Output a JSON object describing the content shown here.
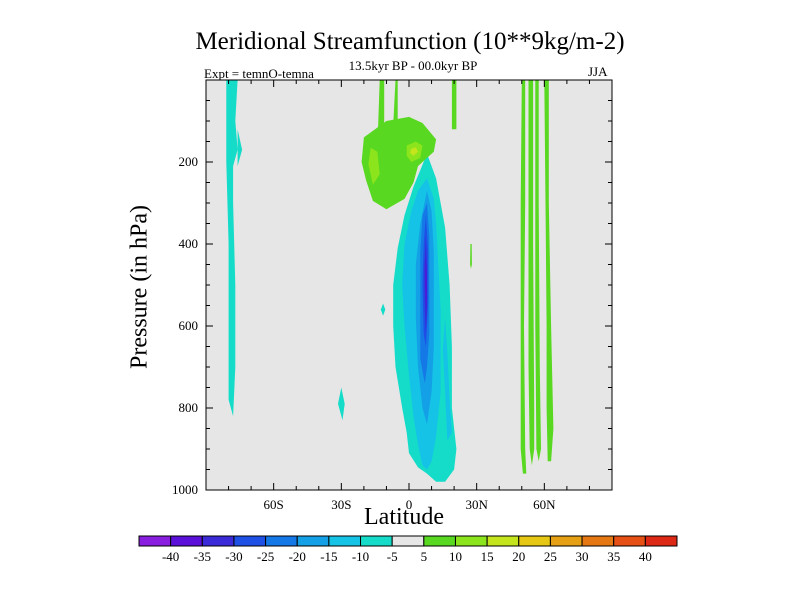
{
  "chart_data": {
    "type": "contour",
    "title": "Meridional Streamfunction (10**9kg/m-2)",
    "subtitle": "13.5kyr BP - 00.0kyr BP",
    "left_annotation": "Expt = temnO-temna",
    "right_annotation": "JJA",
    "xlabel": "Latitude",
    "ylabel": "Pressure (in hPa)",
    "xlim": [
      -90,
      90
    ],
    "ylim": [
      1000,
      0
    ],
    "x_ticks": [
      {
        "value": -60,
        "label": "60S"
      },
      {
        "value": -30,
        "label": "30S"
      },
      {
        "value": 0,
        "label": "0"
      },
      {
        "value": 30,
        "label": "30N"
      },
      {
        "value": 60,
        "label": "60N"
      }
    ],
    "y_ticks": [
      {
        "value": 200,
        "label": "200"
      },
      {
        "value": 400,
        "label": "400"
      },
      {
        "value": 600,
        "label": "600"
      },
      {
        "value": 800,
        "label": "800"
      },
      {
        "value": 1000,
        "label": "1000"
      }
    ],
    "background_color": "#e6e6e6",
    "contour_levels": [
      -40,
      -35,
      -30,
      -25,
      -20,
      -15,
      -10,
      -5,
      5,
      10,
      15,
      20,
      25,
      30,
      35,
      40
    ],
    "colorbar_colors": [
      "#8a1ee0",
      "#5a10d8",
      "#3a2ad8",
      "#1e50e6",
      "#1478e6",
      "#14a0e6",
      "#14c3e6",
      "#14dcc8",
      "#e6e6e6",
      "#58d820",
      "#8ce41c",
      "#c4e41c",
      "#e6c814",
      "#e6a014",
      "#e67814",
      "#e65014",
      "#dc2814"
    ],
    "regions": [
      {
        "name": "sh-high-lat-band",
        "level": -5,
        "color": "#14dcc8",
        "points": [
          [
            -81,
            0
          ],
          [
            -76,
            0
          ],
          [
            -77,
            100
          ],
          [
            -76,
            170
          ],
          [
            -78,
            210
          ],
          [
            -78,
            300
          ],
          [
            -77,
            500
          ],
          [
            -77,
            700
          ],
          [
            -78,
            820
          ],
          [
            -80,
            780
          ],
          [
            -80,
            600
          ],
          [
            -80,
            400
          ],
          [
            -81,
            200
          ]
        ]
      },
      {
        "name": "sh-high-lat-spur",
        "level": -5,
        "color": "#14dcc8",
        "points": [
          [
            -76,
            120
          ],
          [
            -74,
            170
          ],
          [
            -76,
            210
          ]
        ]
      },
      {
        "name": "sh-midlat-spot",
        "level": -5,
        "color": "#14dcc8",
        "points": [
          [
            -30,
            750
          ],
          [
            -28.5,
            790
          ],
          [
            -29.5,
            830
          ],
          [
            -31.5,
            790
          ]
        ]
      },
      {
        "name": "sh-subtropic-spot",
        "level": -5,
        "color": "#14dcc8",
        "points": [
          [
            -11.5,
            545
          ],
          [
            -10.5,
            560
          ],
          [
            -11.5,
            575
          ],
          [
            -12.5,
            560
          ]
        ]
      },
      {
        "name": "tropical-cell-outer",
        "level": -5,
        "color": "#14dcc8",
        "points": [
          [
            8,
            180
          ],
          [
            12,
            240
          ],
          [
            14,
            300
          ],
          [
            16,
            360
          ],
          [
            18,
            500
          ],
          [
            19,
            650
          ],
          [
            19,
            800
          ],
          [
            21,
            900
          ],
          [
            20,
            950
          ],
          [
            16,
            980
          ],
          [
            12,
            980
          ],
          [
            8,
            960
          ],
          [
            4,
            945
          ],
          [
            0,
            910
          ],
          [
            -1,
            860
          ],
          [
            -3,
            800
          ],
          [
            -6,
            700
          ],
          [
            -7,
            600
          ],
          [
            -7,
            500
          ],
          [
            -5,
            410
          ],
          [
            -2,
            330
          ],
          [
            2,
            260
          ]
        ]
      },
      {
        "name": "tropical-cell-level-10",
        "level": -10,
        "color": "#14c3e6",
        "points": [
          [
            8,
            240
          ],
          [
            11,
            290
          ],
          [
            12,
            350
          ],
          [
            13,
            450
          ],
          [
            14,
            560
          ],
          [
            14,
            650
          ],
          [
            14,
            760
          ],
          [
            12,
            870
          ],
          [
            10,
            930
          ],
          [
            8,
            950
          ],
          [
            6,
            940
          ],
          [
            4,
            890
          ],
          [
            2,
            820
          ],
          [
            0,
            720
          ],
          [
            -2,
            600
          ],
          [
            -3,
            500
          ],
          [
            -2,
            400
          ],
          [
            1,
            320
          ],
          [
            4,
            270
          ]
        ]
      },
      {
        "name": "tropical-cell-level-15",
        "level": -15,
        "color": "#14a0e6",
        "points": [
          [
            8,
            270
          ],
          [
            10,
            320
          ],
          [
            11,
            420
          ],
          [
            11,
            520
          ],
          [
            11,
            650
          ],
          [
            10,
            760
          ],
          [
            8,
            840
          ],
          [
            6,
            800
          ],
          [
            4,
            700
          ],
          [
            3,
            580
          ],
          [
            3,
            450
          ],
          [
            5,
            350
          ]
        ]
      },
      {
        "name": "nh-lower-spur",
        "level": -10,
        "color": "#14c3e6",
        "points": [
          [
            16,
            580
          ],
          [
            17,
            660
          ],
          [
            18,
            780
          ],
          [
            19,
            860
          ],
          [
            17,
            880
          ],
          [
            16,
            760
          ],
          [
            15,
            660
          ]
        ]
      },
      {
        "name": "tropical-cell-level-20",
        "level": -20,
        "color": "#1478e6",
        "points": [
          [
            8,
            300
          ],
          [
            9,
            380
          ],
          [
            9,
            500
          ],
          [
            9,
            620
          ],
          [
            8,
            700
          ],
          [
            7,
            740
          ],
          [
            5,
            680
          ],
          [
            5,
            550
          ],
          [
            5,
            420
          ],
          [
            6,
            330
          ]
        ]
      },
      {
        "name": "tropical-cell-level-25",
        "level": -25,
        "color": "#1e50e6",
        "points": [
          [
            7.5,
            330
          ],
          [
            8.5,
            420
          ],
          [
            8.5,
            540
          ],
          [
            7.5,
            650
          ],
          [
            6.5,
            620
          ],
          [
            6,
            500
          ],
          [
            6.5,
            400
          ]
        ]
      },
      {
        "name": "tropical-cell-level-30",
        "level": -30,
        "color": "#3a2ad8",
        "points": [
          [
            7.5,
            380
          ],
          [
            8,
            460
          ],
          [
            8,
            560
          ],
          [
            7.5,
            620
          ],
          [
            7,
            560
          ],
          [
            6.8,
            460
          ]
        ]
      },
      {
        "name": "tropical-cell-core",
        "level": -35,
        "color": "#5a10d8",
        "points": [
          [
            7.5,
            430
          ],
          [
            7.8,
            500
          ],
          [
            7.6,
            560
          ],
          [
            7.2,
            500
          ]
        ]
      },
      {
        "name": "upper-positive-band-left",
        "level": 5,
        "color": "#58d820",
        "points": [
          [
            -13,
            0
          ],
          [
            -11,
            0
          ],
          [
            -11,
            100
          ],
          [
            -12,
            160
          ],
          [
            -14,
            165
          ]
        ]
      },
      {
        "name": "upper-positive-band-right",
        "level": 5,
        "color": "#58d820",
        "points": [
          [
            -6,
            0
          ],
          [
            -5,
            0
          ],
          [
            -5,
            110
          ],
          [
            -7,
            110
          ]
        ]
      },
      {
        "name": "upper-positive-band-east",
        "level": 5,
        "color": "#58d820",
        "points": [
          [
            19,
            0
          ],
          [
            21,
            0
          ],
          [
            21,
            120
          ],
          [
            19,
            120
          ]
        ]
      },
      {
        "name": "upper-positive-main",
        "level": 5,
        "color": "#58d820",
        "points": [
          [
            -20,
            140
          ],
          [
            -10,
            100
          ],
          [
            0,
            90
          ],
          [
            6,
            105
          ],
          [
            12,
            145
          ],
          [
            11,
            175
          ],
          [
            8,
            190
          ],
          [
            4,
            210
          ],
          [
            2,
            250
          ],
          [
            -2,
            290
          ],
          [
            -10,
            315
          ],
          [
            -16,
            295
          ],
          [
            -19,
            245
          ],
          [
            -21,
            200
          ]
        ]
      },
      {
        "name": "upper-positive-level-10",
        "level": 10,
        "color": "#8ce41c",
        "points": [
          [
            -17,
            165
          ],
          [
            -14,
            175
          ],
          [
            -13,
            230
          ],
          [
            -16,
            255
          ],
          [
            -18,
            205
          ]
        ]
      },
      {
        "name": "upper-positive-core",
        "level": 10,
        "color": "#8ce41c",
        "points": [
          [
            -1,
            160
          ],
          [
            3,
            150
          ],
          [
            6,
            160
          ],
          [
            5,
            190
          ],
          [
            1,
            200
          ],
          [
            -1,
            185
          ]
        ]
      },
      {
        "name": "upper-positive-core-peak",
        "level": 15,
        "color": "#c4e41c",
        "points": [
          [
            1,
            168
          ],
          [
            3,
            164
          ],
          [
            4,
            175
          ],
          [
            2,
            185
          ],
          [
            0.5,
            178
          ]
        ]
      },
      {
        "name": "nh-subtropic-sliver",
        "level": 5,
        "color": "#58d820",
        "points": [
          [
            27.2,
            400
          ],
          [
            27.8,
            400
          ],
          [
            27.9,
            450
          ],
          [
            27.5,
            460
          ],
          [
            27.1,
            450
          ]
        ]
      },
      {
        "name": "nh-band-1",
        "level": 5,
        "color": "#58d820",
        "points": [
          [
            50,
            0
          ],
          [
            51.5,
            0
          ],
          [
            51.5,
            300
          ],
          [
            51,
            600
          ],
          [
            51.5,
            900
          ],
          [
            52,
            960
          ],
          [
            50.5,
            960
          ],
          [
            49.5,
            900
          ],
          [
            49.5,
            600
          ],
          [
            49.5,
            300
          ]
        ]
      },
      {
        "name": "nh-band-2",
        "level": 5,
        "color": "#58d820",
        "points": [
          [
            53,
            0
          ],
          [
            55,
            0
          ],
          [
            55,
            400
          ],
          [
            55.5,
            800
          ],
          [
            55.5,
            900
          ],
          [
            54.5,
            940
          ],
          [
            53.5,
            900
          ],
          [
            53,
            700
          ],
          [
            53,
            400
          ]
        ]
      },
      {
        "name": "nh-band-3",
        "level": 5,
        "color": "#58d820",
        "points": [
          [
            56,
            0
          ],
          [
            57.5,
            0
          ],
          [
            57.5,
            300
          ],
          [
            58,
            700
          ],
          [
            58.5,
            900
          ],
          [
            57.5,
            930
          ],
          [
            56.5,
            900
          ],
          [
            56,
            600
          ]
        ]
      },
      {
        "name": "nh-band-4",
        "level": 5,
        "color": "#58d820",
        "points": [
          [
            60,
            0
          ],
          [
            62,
            0
          ],
          [
            62,
            300
          ],
          [
            63,
            600
          ],
          [
            64,
            850
          ],
          [
            63,
            930
          ],
          [
            61.5,
            930
          ],
          [
            61,
            800
          ],
          [
            61,
            600
          ],
          [
            60.5,
            300
          ]
        ]
      }
    ]
  }
}
